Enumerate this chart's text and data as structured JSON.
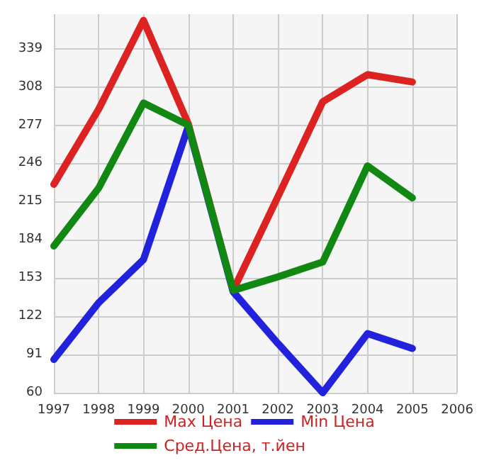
{
  "chart_data": {
    "type": "line",
    "categories": [
      "1997",
      "1998",
      "1999",
      "2000",
      "2001",
      "2002",
      "2003",
      "2004",
      "2005",
      "2006"
    ],
    "series": [
      {
        "name": "Max Цена",
        "color": "#dd2222",
        "values": [
          229,
          290,
          362,
          278,
          143,
          219,
          296,
          318,
          312,
          null
        ]
      },
      {
        "name": "Min Цена",
        "color": "#2222dd",
        "values": [
          87,
          133,
          168,
          276,
          142,
          100,
          60,
          108,
          96,
          null
        ]
      },
      {
        "name": "Сред.Цена, т.йен",
        "color": "#118811",
        "values": [
          179,
          226,
          295,
          277,
          143,
          154,
          166,
          244,
          218,
          null
        ]
      }
    ],
    "ylim": [
      60,
      367
    ],
    "yticks": [
      60,
      91,
      122,
      153,
      184,
      215,
      246,
      277,
      308,
      339
    ],
    "grid": true,
    "legend": "bottom",
    "marker": "none",
    "line_style": "solid"
  }
}
